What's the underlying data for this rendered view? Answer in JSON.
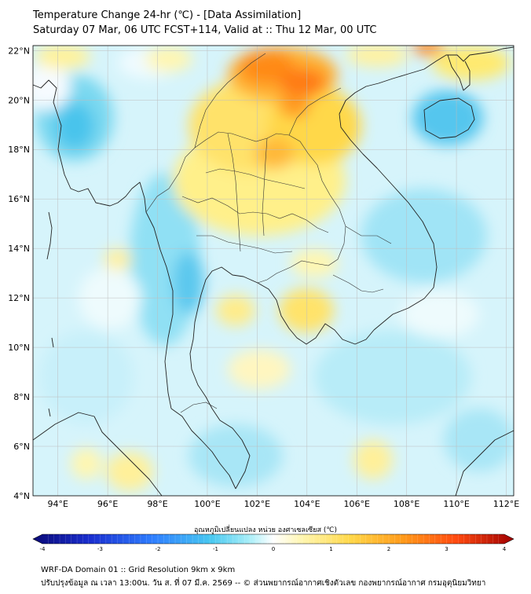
{
  "header": {
    "title": "Temperature Change 24-hr (℃) - [Data Assimilation]",
    "subtitle": "Saturday 07 Mar, 06 UTC FCST+114, Valid at :: Thu 12 Mar, 00 UTC"
  },
  "map": {
    "lat_ticks": [
      "22°N",
      "20°N",
      "18°N",
      "16°N",
      "14°N",
      "12°N",
      "10°N",
      "8°N",
      "6°N",
      "4°N"
    ],
    "lon_ticks": [
      "94°E",
      "96°E",
      "98°E",
      "100°E",
      "102°E",
      "104°E",
      "106°E",
      "108°E",
      "110°E",
      "112°E"
    ],
    "lat_range": [
      4,
      22.2
    ],
    "lon_range": [
      93,
      112.3
    ]
  },
  "colorbar": {
    "label": "อุณหภูมิเปลี่ยนแปลง หน่วย องศาเซลเซียส (℃)",
    "ticks": [
      "-4",
      "-3",
      "-2",
      "-1",
      "0",
      "1",
      "2",
      "3",
      "4"
    ],
    "range": [
      -4,
      4
    ],
    "colors": [
      "#0a0a78",
      "#1a2fd0",
      "#2f7fff",
      "#48c8f0",
      "#a8eef8",
      "#ffffff",
      "#fff6b0",
      "#ffd84a",
      "#ff9a1a",
      "#ff4a10",
      "#a00000"
    ]
  },
  "footer": {
    "line1": "WRF-DA Domain 01 :: Grid Resolution 9km x 9km",
    "line2": "ปรับปรุงข้อมูล ณ เวลา 13:00น. วัน ส. ที่ 07 มี.ค. 2569 -- © ส่วนพยากรณ์อากาศเชิงตัวเลข กองพยากรณ์อากาศ กรมอุตุนิยมวิทยา"
  }
}
